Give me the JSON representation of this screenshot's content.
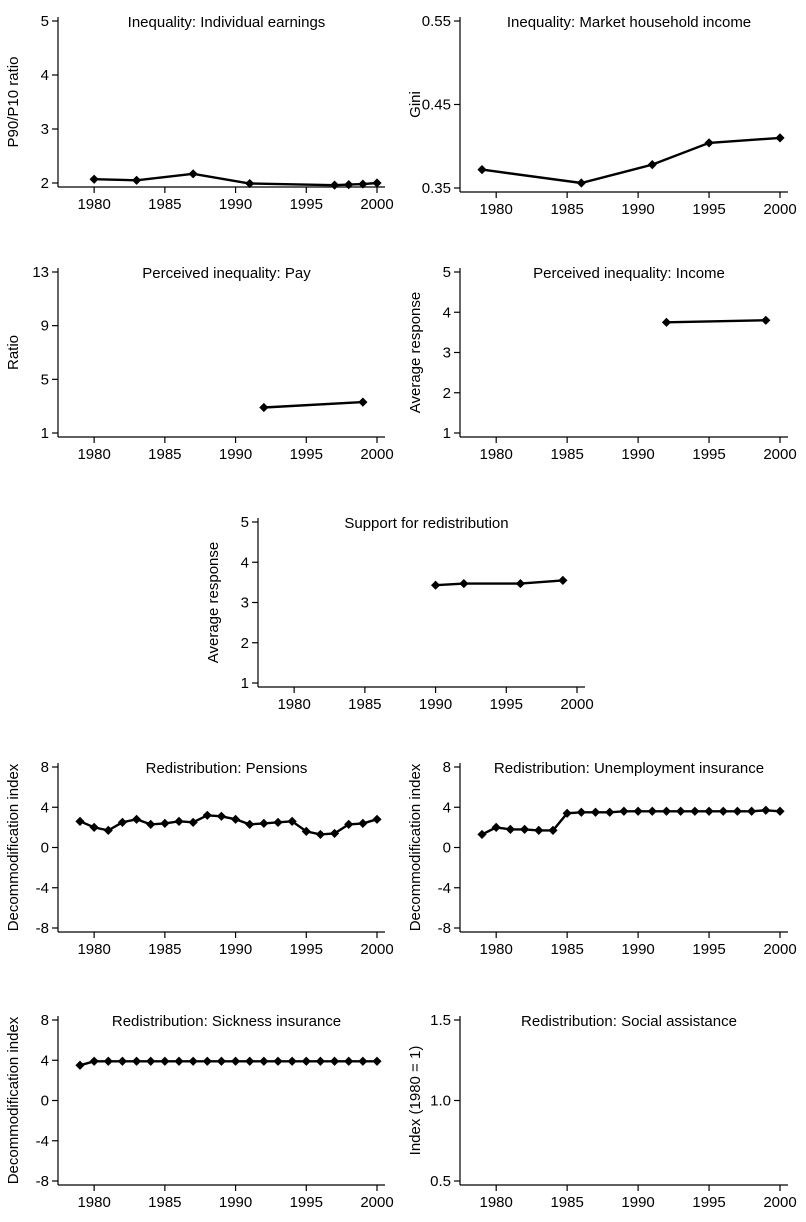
{
  "chart_data": [
    {
      "type": "line",
      "title": "Inequality: Individual earnings",
      "ylabel": "P90/P10 ratio",
      "xlim": [
        1979,
        2000
      ],
      "ylim": [
        2,
        5
      ],
      "xticks": [
        1980,
        1985,
        1990,
        1995,
        2000
      ],
      "yticks": [
        2,
        3,
        4,
        5
      ],
      "ytick_labels": [
        "2",
        "3",
        "4",
        "5"
      ],
      "series": [
        {
          "x": [
            1980,
            1983,
            1987,
            1991,
            1997,
            1998,
            1999,
            2000
          ],
          "y": [
            2.07,
            2.05,
            2.17,
            1.99,
            1.96,
            1.97,
            1.98,
            2.0
          ]
        }
      ]
    },
    {
      "type": "line",
      "title": "Inequality: Market household income",
      "ylabel": "Gini",
      "xlim": [
        1979,
        2000
      ],
      "ylim": [
        0.35,
        0.55
      ],
      "xticks": [
        1980,
        1985,
        1990,
        1995,
        2000
      ],
      "yticks": [
        0.35,
        0.45,
        0.55
      ],
      "ytick_labels": [
        "0.35",
        "0.45",
        "0.55"
      ],
      "series": [
        {
          "x": [
            1979,
            1986,
            1991,
            1995,
            2000
          ],
          "y": [
            0.372,
            0.356,
            0.378,
            0.404,
            0.41
          ]
        }
      ]
    },
    {
      "type": "line",
      "title": "Perceived inequality: Pay",
      "ylabel": "Ratio",
      "xlim": [
        1979,
        2000
      ],
      "ylim": [
        1,
        13
      ],
      "xticks": [
        1980,
        1985,
        1990,
        1995,
        2000
      ],
      "yticks": [
        1,
        5,
        9,
        13
      ],
      "ytick_labels": [
        "1",
        "5",
        "9",
        "13"
      ],
      "series": [
        {
          "x": [
            1992,
            1999
          ],
          "y": [
            2.9,
            3.3
          ]
        }
      ]
    },
    {
      "type": "line",
      "title": "Perceived inequality: Income",
      "ylabel": "Average response",
      "xlim": [
        1979,
        2000
      ],
      "ylim": [
        1,
        5
      ],
      "xticks": [
        1980,
        1985,
        1990,
        1995,
        2000
      ],
      "yticks": [
        1,
        2,
        3,
        4,
        5
      ],
      "ytick_labels": [
        "1",
        "2",
        "3",
        "4",
        "5"
      ],
      "series": [
        {
          "x": [
            1992,
            1999
          ],
          "y": [
            3.75,
            3.8
          ]
        }
      ]
    },
    {
      "type": "line",
      "title": "Support for redistribution",
      "ylabel": "Average response",
      "xlim": [
        1979,
        2000
      ],
      "ylim": [
        1,
        5
      ],
      "xticks": [
        1980,
        1985,
        1990,
        1995,
        2000
      ],
      "yticks": [
        1,
        2,
        3,
        4,
        5
      ],
      "ytick_labels": [
        "1",
        "2",
        "3",
        "4",
        "5"
      ],
      "series": [
        {
          "x": [
            1990,
            1992,
            1996,
            1999
          ],
          "y": [
            3.43,
            3.47,
            3.47,
            3.55
          ]
        }
      ]
    },
    {
      "type": "line",
      "title": "Redistribution: Pensions",
      "ylabel": "Decommodification index",
      "xlim": [
        1979,
        2000
      ],
      "ylim": [
        -8,
        8
      ],
      "xticks": [
        1980,
        1985,
        1990,
        1995,
        2000
      ],
      "yticks": [
        -8,
        -4,
        0,
        4,
        8
      ],
      "ytick_labels": [
        "-8",
        "-4",
        "0",
        "4",
        "8"
      ],
      "series": [
        {
          "x": [
            1979,
            1980,
            1981,
            1982,
            1983,
            1984,
            1985,
            1986,
            1987,
            1988,
            1989,
            1990,
            1991,
            1992,
            1993,
            1994,
            1995,
            1996,
            1997,
            1998,
            1999,
            2000
          ],
          "y": [
            2.6,
            2.0,
            1.7,
            2.5,
            2.8,
            2.3,
            2.4,
            2.6,
            2.5,
            3.2,
            3.1,
            2.8,
            2.3,
            2.4,
            2.5,
            2.6,
            1.6,
            1.3,
            1.4,
            2.3,
            2.4,
            2.8
          ]
        }
      ]
    },
    {
      "type": "line",
      "title": "Redistribution: Unemployment insurance",
      "ylabel": "Decommodification index",
      "xlim": [
        1979,
        2000
      ],
      "ylim": [
        -8,
        8
      ],
      "xticks": [
        1980,
        1985,
        1990,
        1995,
        2000
      ],
      "yticks": [
        -8,
        -4,
        0,
        4,
        8
      ],
      "ytick_labels": [
        "-8",
        "-4",
        "0",
        "4",
        "8"
      ],
      "series": [
        {
          "x": [
            1979,
            1980,
            1981,
            1982,
            1983,
            1984,
            1985,
            1986,
            1987,
            1988,
            1989,
            1990,
            1991,
            1992,
            1993,
            1994,
            1995,
            1996,
            1997,
            1998,
            1999,
            2000
          ],
          "y": [
            1.3,
            2.0,
            1.8,
            1.8,
            1.7,
            1.7,
            3.4,
            3.5,
            3.5,
            3.5,
            3.6,
            3.6,
            3.6,
            3.6,
            3.6,
            3.6,
            3.6,
            3.6,
            3.6,
            3.6,
            3.7,
            3.6
          ]
        }
      ]
    },
    {
      "type": "line",
      "title": "Redistribution: Sickness insurance",
      "ylabel": "Decommodification index",
      "xlim": [
        1979,
        2000
      ],
      "ylim": [
        -8,
        8
      ],
      "xticks": [
        1980,
        1985,
        1990,
        1995,
        2000
      ],
      "yticks": [
        -8,
        -4,
        0,
        4,
        8
      ],
      "ytick_labels": [
        "-8",
        "-4",
        "0",
        "4",
        "8"
      ],
      "series": [
        {
          "x": [
            1979,
            1980,
            1981,
            1982,
            1983,
            1984,
            1985,
            1986,
            1987,
            1988,
            1989,
            1990,
            1991,
            1992,
            1993,
            1994,
            1995,
            1996,
            1997,
            1998,
            1999,
            2000
          ],
          "y": [
            3.5,
            3.9,
            3.9,
            3.9,
            3.9,
            3.9,
            3.9,
            3.9,
            3.9,
            3.9,
            3.9,
            3.9,
            3.9,
            3.9,
            3.9,
            3.9,
            3.9,
            3.9,
            3.9,
            3.9,
            3.9,
            3.9
          ]
        }
      ]
    },
    {
      "type": "line",
      "title": "Redistribution: Social assistance",
      "ylabel": "Index (1980 = 1)",
      "xlim": [
        1979,
        2000
      ],
      "ylim": [
        0.5,
        1.5
      ],
      "xticks": [
        1980,
        1985,
        1990,
        1995,
        2000
      ],
      "yticks": [
        0.5,
        1.0,
        1.5
      ],
      "ytick_labels": [
        "0.5",
        "1.0",
        "1.5"
      ],
      "series": []
    }
  ]
}
